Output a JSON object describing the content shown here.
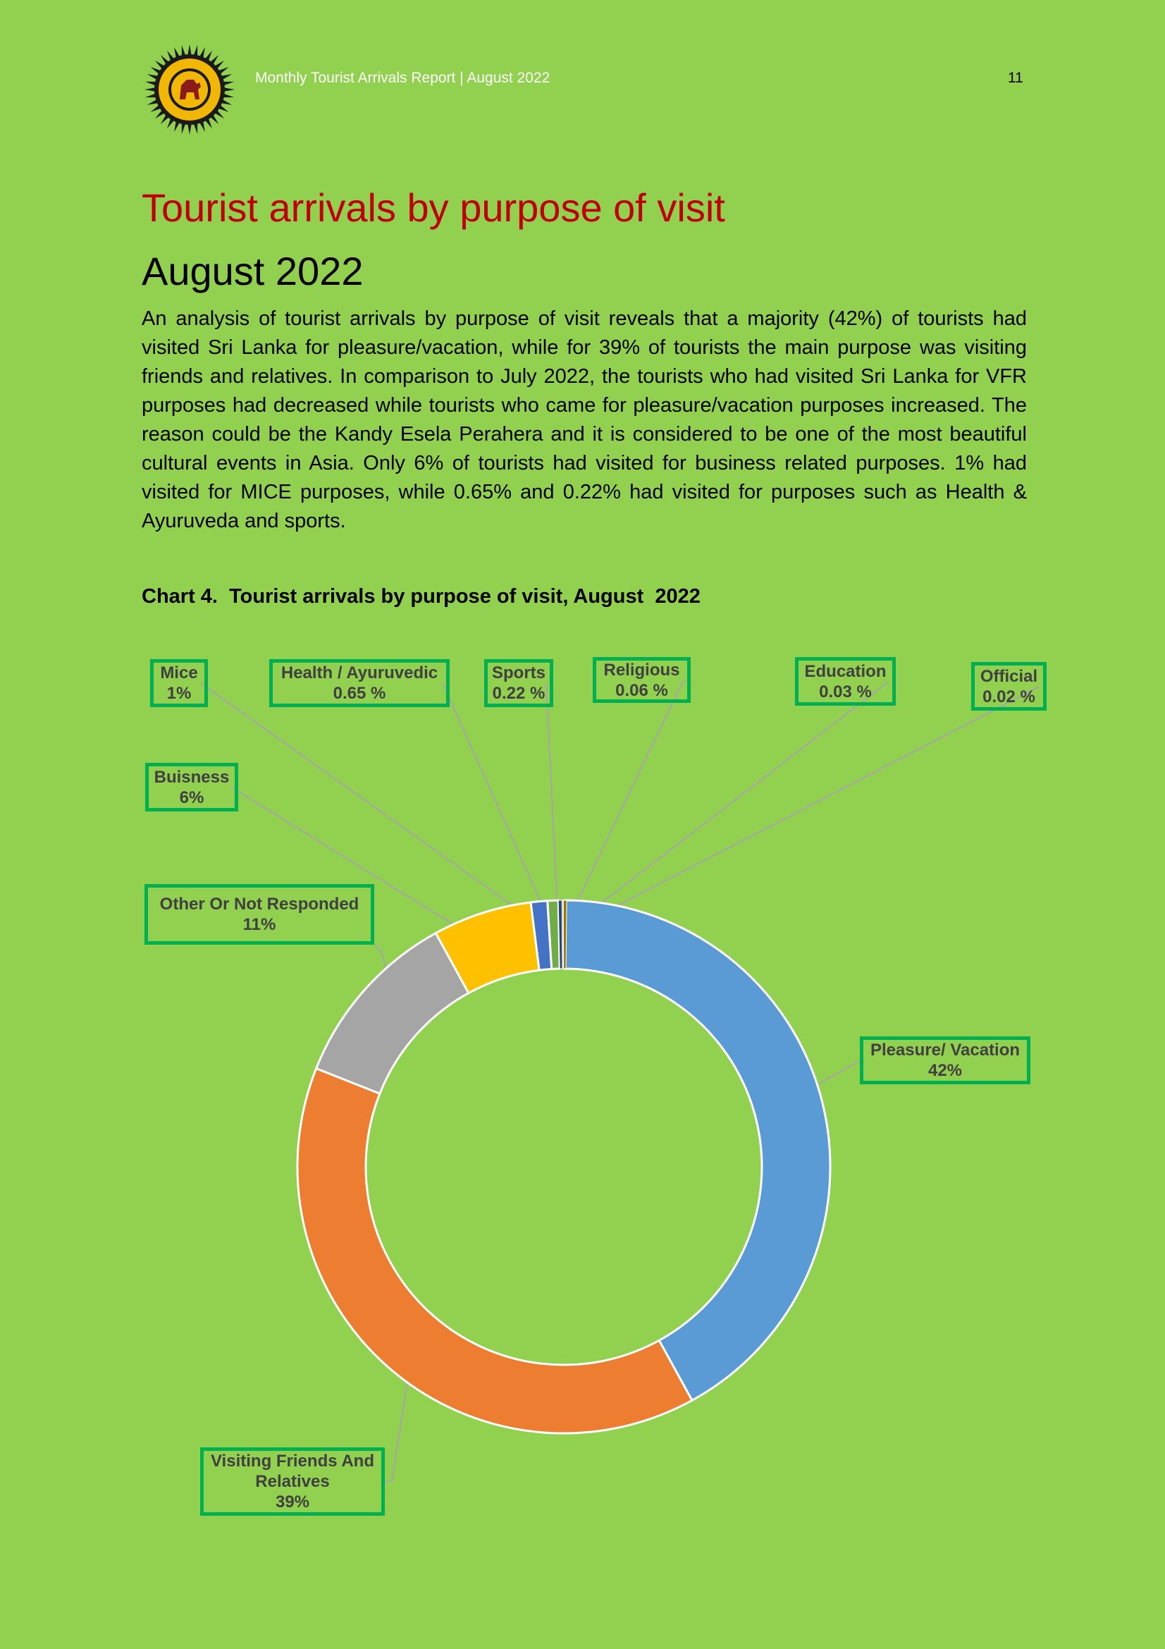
{
  "header": {
    "title": "Monthly Tourist Arrivals Report | August 2022",
    "page_number": "11"
  },
  "heading": {
    "title": "Tourist arrivals by purpose of visit",
    "subtitle": "August 2022"
  },
  "body_text": "An analysis of tourist arrivals by purpose of visit reveals that a majority (42%) of tourists had visited Sri Lanka for pleasure/vacation, while for 39% of tourists the main purpose was visiting friends and relatives. In comparison to July 2022, the tourists who had visited Sri Lanka for VFR purposes had decreased while tourists who came for pleasure/vacation purposes increased. The reason could be the Kandy Esela Perahera and it is considered to be one of the most beautiful cultural events in Asia. Only 6% of tourists had visited for business related purposes. 1% had visited for MICE purposes, while 0.65% and 0.22% had visited for purposes such as Health & Ayuruveda and sports.",
  "chart_caption": "Chart 4.  Tourist arrivals by purpose of visit, August  2022",
  "colors": {
    "background": "#92d050",
    "title": "#c00000",
    "label_border": "#00b050",
    "leader_line": "#a6a6a6"
  },
  "chart_data": {
    "type": "pie",
    "donut": true,
    "slices": [
      {
        "label": "Pleasure/ Vacation",
        "value": 42,
        "display": "42%",
        "color": "#5b9bd5"
      },
      {
        "label": "Visiting Friends And Relatives",
        "value": 39,
        "display": "39%",
        "color": "#ed7d31"
      },
      {
        "label": "Other Or Not Responded",
        "value": 11,
        "display": "11%",
        "color": "#a5a5a5"
      },
      {
        "label": "Buisness",
        "value": 6,
        "display": "6%",
        "color": "#ffc000"
      },
      {
        "label": "Mice",
        "value": 1,
        "display": "1%",
        "color": "#4472c4"
      },
      {
        "label": "Health / Ayuruvedic",
        "value": 0.65,
        "display": "0.65 %",
        "color": "#70ad47"
      },
      {
        "label": "Sports",
        "value": 0.22,
        "display": "0.22 %",
        "color": "#264478"
      },
      {
        "label": "Religious",
        "value": 0.06,
        "display": "0.06 %",
        "color": "#9e480e"
      },
      {
        "label": "Education",
        "value": 0.03,
        "display": "0.03 %",
        "color": "#636363"
      },
      {
        "label": "Official",
        "value": 0.02,
        "display": "0.02 %",
        "color": "#997300"
      }
    ]
  }
}
